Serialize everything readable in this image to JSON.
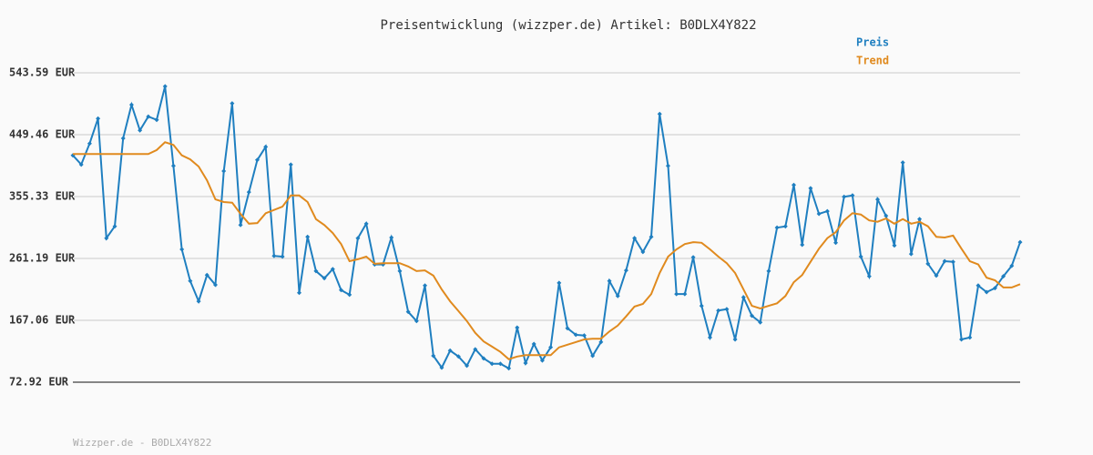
{
  "chart_data": {
    "type": "line",
    "title": "Preisentwicklung (wizzper.de) Artikel: B0DLX4Y822",
    "series": [
      {
        "name": "Preis",
        "color": "#1f7fc0",
        "markers": true,
        "values": [
          418,
          404,
          436,
          474,
          292,
          310,
          444,
          495,
          456,
          477,
          472,
          523,
          402,
          275,
          227,
          196,
          236,
          221,
          394,
          497,
          312,
          362,
          411,
          431,
          265,
          264,
          404,
          209,
          294,
          242,
          231,
          245,
          213,
          206,
          292,
          314,
          252,
          252,
          293,
          242,
          180,
          166,
          220,
          113,
          95,
          121,
          112,
          98,
          123,
          109,
          101,
          101,
          94,
          156,
          102,
          131,
          106,
          126,
          224,
          155,
          145,
          144,
          113,
          134,
          227,
          204,
          243,
          292,
          271,
          294,
          481,
          402,
          207,
          207,
          263,
          189,
          141,
          182,
          184,
          138,
          202,
          174,
          164,
          242,
          308,
          310,
          373,
          282,
          368,
          329,
          333,
          285,
          355,
          357,
          264,
          234,
          351,
          326,
          281,
          407,
          268,
          321,
          253,
          235,
          257,
          256,
          138,
          141,
          220,
          210,
          216,
          234,
          250,
          286
        ]
      },
      {
        "name": "Trend",
        "color": "#e08a1e",
        "markers": false,
        "values": [
          420,
          420,
          420,
          420,
          420,
          420,
          420,
          420,
          420,
          420,
          426,
          438,
          434,
          418,
          412,
          401,
          380,
          351,
          347,
          346,
          329,
          314,
          315,
          330,
          335,
          340,
          357,
          357,
          347,
          321,
          312,
          300,
          283,
          257,
          260,
          264,
          253,
          254,
          254,
          254,
          249,
          242,
          243,
          235,
          214,
          196,
          181,
          166,
          148,
          135,
          127,
          119,
          108,
          112,
          114,
          114,
          114,
          114,
          126,
          130,
          134,
          138,
          139,
          139,
          150,
          159,
          173,
          188,
          192,
          207,
          239,
          264,
          275,
          283,
          286,
          285,
          275,
          264,
          254,
          239,
          214,
          189,
          185,
          189,
          193,
          204,
          225,
          236,
          256,
          276,
          292,
          301,
          319,
          330,
          328,
          319,
          317,
          322,
          314,
          321,
          314,
          317,
          310,
          294,
          293,
          296,
          276,
          257,
          252,
          232,
          228,
          217,
          217,
          222
        ]
      }
    ],
    "ylim": [
      72.92,
      543.59
    ],
    "yticks": [
      {
        "value": 72.92,
        "label": "72.92 EUR"
      },
      {
        "value": 167.06,
        "label": "167.06 EUR"
      },
      {
        "value": 261.19,
        "label": "261.19 EUR"
      },
      {
        "value": 355.33,
        "label": "355.33 EUR"
      },
      {
        "value": 449.46,
        "label": "449.46 EUR"
      },
      {
        "value": 543.59,
        "label": "543.59 EUR"
      }
    ],
    "grid": true,
    "legend": "top-right"
  },
  "footer": "Wizzper.de - B0DLX4Y822"
}
